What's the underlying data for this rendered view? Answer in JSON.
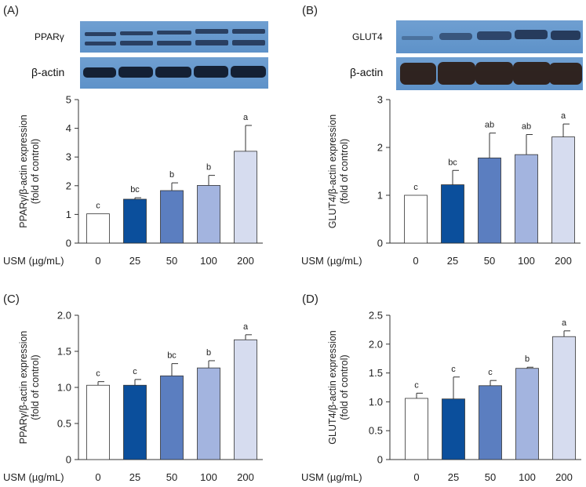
{
  "x_header": "USM (µg/mL)",
  "blot_panels": [
    {
      "letter": "(A)",
      "target_label": "PPARγ",
      "loading_label": "β-actin"
    },
    {
      "letter": "(B)",
      "target_label": "GLUT4",
      "loading_label": "β-actin"
    }
  ],
  "colors": [
    "#ffffff",
    "#0b4f9c",
    "#5b7ec0",
    "#a3b4df",
    "#d6dcef"
  ],
  "chart_data": [
    {
      "type": "bar",
      "panel": "(A)",
      "categories": [
        "0",
        "25",
        "50",
        "100",
        "200"
      ],
      "values": [
        1.02,
        1.53,
        1.83,
        2.01,
        3.2
      ],
      "errors": [
        0,
        0.05,
        0.27,
        0.35,
        0.9
      ],
      "significance": [
        "c",
        "bc",
        "b",
        "b",
        "a"
      ],
      "ylabel": [
        "PPARγ/β-actin expression",
        "(fold of control)"
      ],
      "ylim": [
        0,
        5
      ],
      "yticks": [
        "0",
        "1",
        "2",
        "3",
        "4",
        "5"
      ]
    },
    {
      "type": "bar",
      "panel": "(B)",
      "categories": [
        "0",
        "25",
        "50",
        "100",
        "200"
      ],
      "values": [
        1.0,
        1.22,
        1.78,
        1.85,
        2.22
      ],
      "errors": [
        0,
        0.3,
        0.52,
        0.42,
        0.27
      ],
      "significance": [
        "c",
        "bc",
        "ab",
        "ab",
        "a"
      ],
      "ylabel": [
        "GLUT4/β-actin expression",
        "(fold of control)"
      ],
      "ylim": [
        0,
        3
      ],
      "yticks": [
        "0",
        "1",
        "2",
        "3"
      ]
    },
    {
      "type": "bar",
      "panel": "(C)",
      "categories": [
        "0",
        "25",
        "50",
        "100",
        "200"
      ],
      "values": [
        1.03,
        1.03,
        1.16,
        1.27,
        1.66
      ],
      "errors": [
        0.05,
        0.08,
        0.17,
        0.1,
        0.07
      ],
      "significance": [
        "c",
        "c",
        "bc",
        "b",
        "a"
      ],
      "ylabel": [
        "PPARγ/β-actin expression",
        "(fold of control)"
      ],
      "ylim": [
        0,
        2.0
      ],
      "yticks": [
        "0",
        "0.5",
        "1.0",
        "1.5",
        "2.0"
      ]
    },
    {
      "type": "bar",
      "panel": "(D)",
      "categories": [
        "0",
        "25",
        "50",
        "100",
        "200"
      ],
      "values": [
        1.06,
        1.05,
        1.28,
        1.58,
        2.13
      ],
      "errors": [
        0.09,
        0.38,
        0.09,
        0.02,
        0.1
      ],
      "significance": [
        "c",
        "c",
        "c",
        "b",
        "a"
      ],
      "ylabel": [
        "GLUT4/β-actin expression",
        "(fold of control)"
      ],
      "ylim": [
        0,
        2.5
      ],
      "yticks": [
        "0",
        "0.5",
        "1.0",
        "1.5",
        "2.0",
        "2.5"
      ]
    }
  ]
}
